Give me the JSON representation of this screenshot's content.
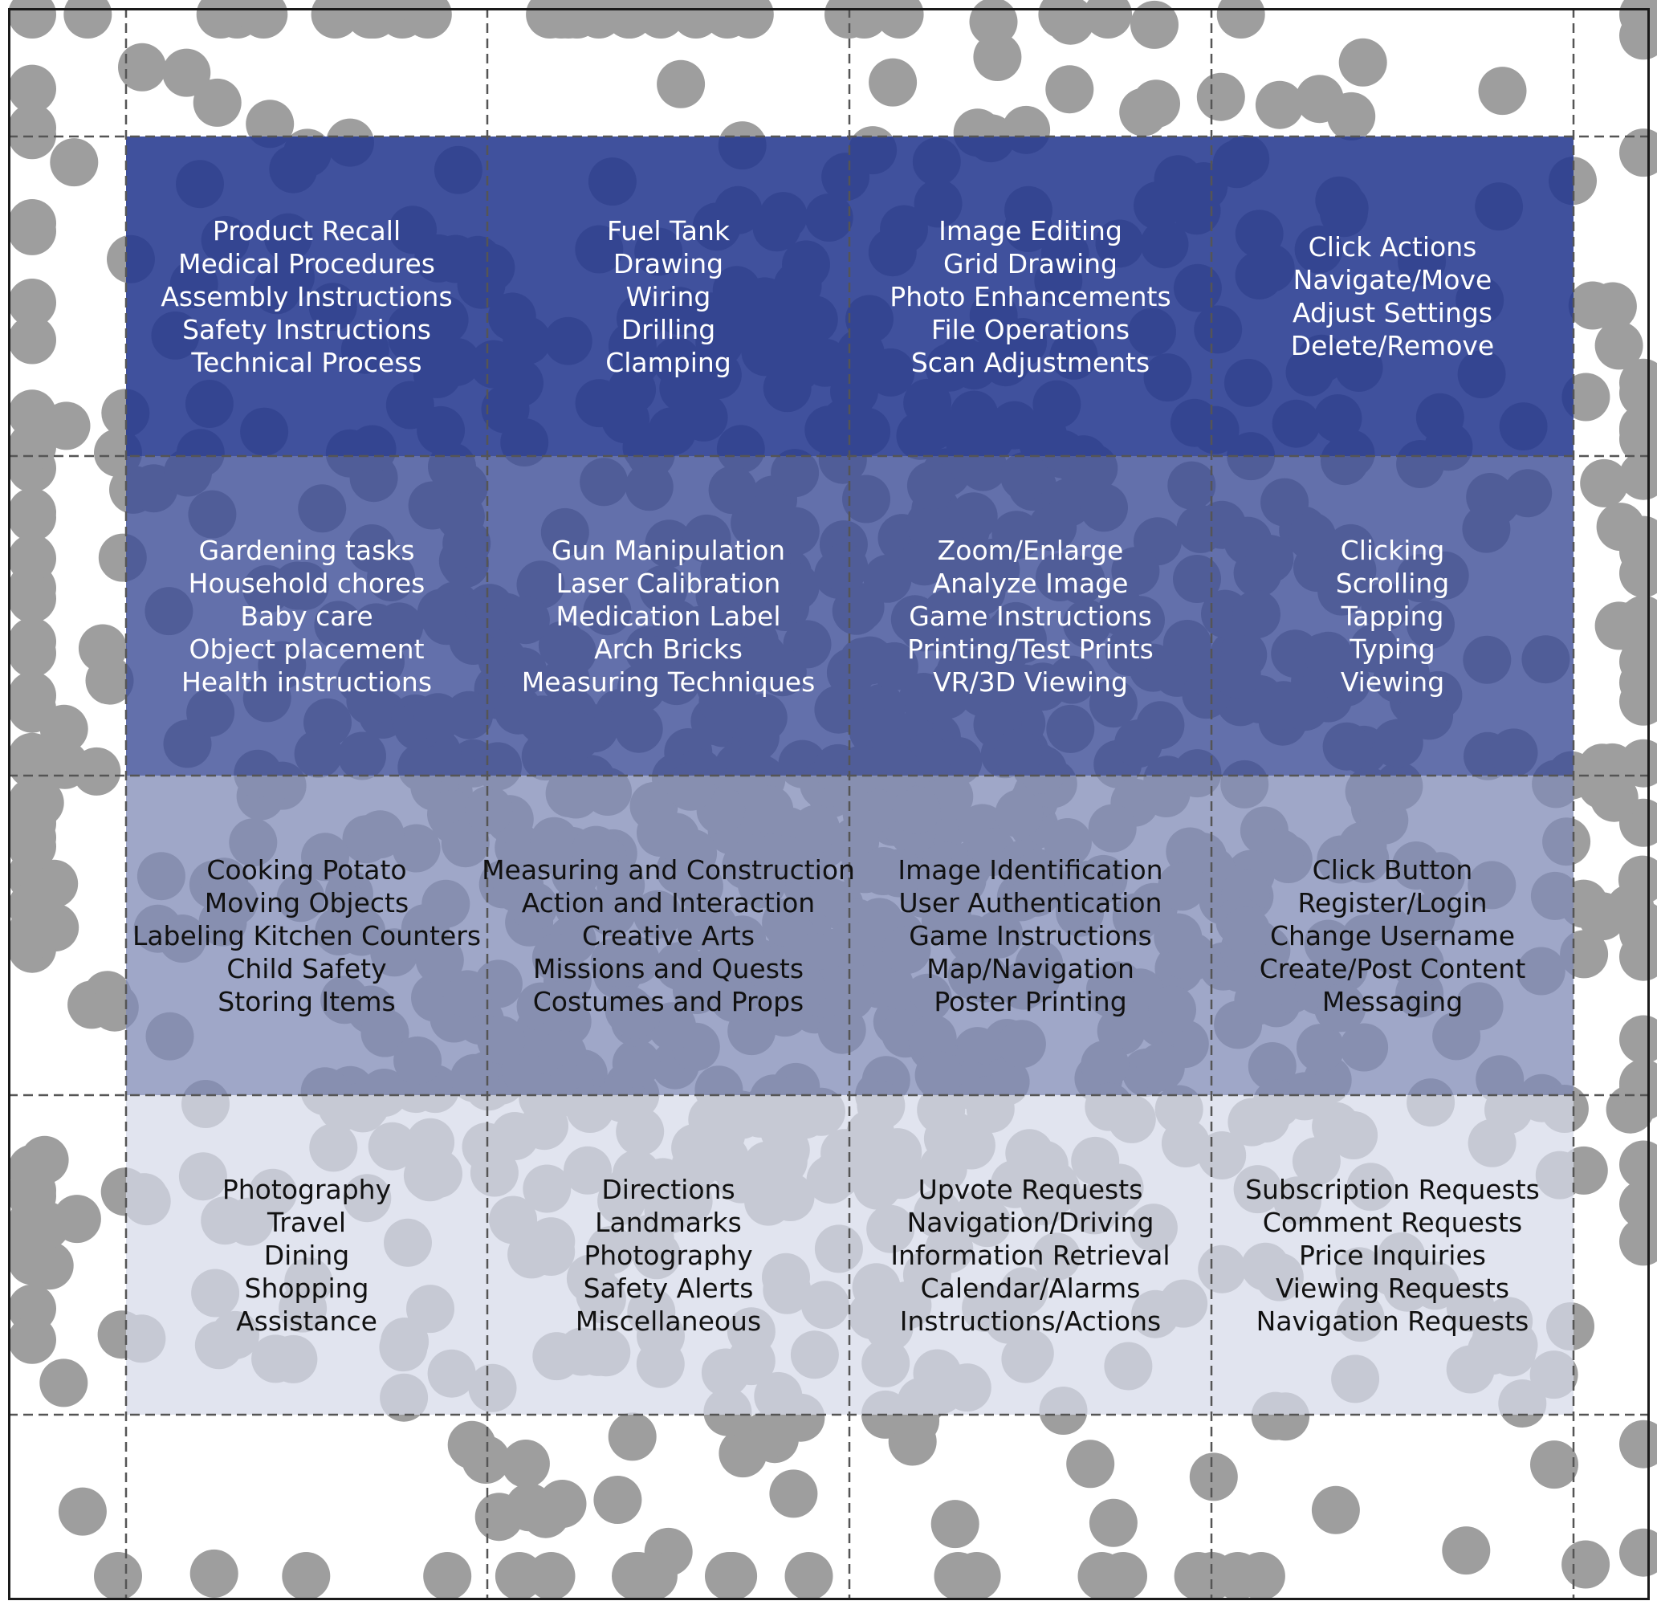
{
  "colors": {
    "dot": "#9e9e9e",
    "row_fills": [
      "#26398f",
      "#3c4c96",
      "#7f8ab6",
      "#d5d9e9"
    ],
    "row_text": [
      "#ffffff",
      "#ffffff",
      "#111111",
      "#111111"
    ],
    "grid_line": "#555555",
    "frame": "#1a1a1a"
  },
  "grid": {
    "cells": [
      [
        {
          "items": [
            "Product Recall",
            "Medical Procedures",
            "Assembly Instructions",
            "Safety Instructions",
            "Technical Process"
          ]
        },
        {
          "items": [
            "Fuel Tank",
            "Drawing",
            "Wiring",
            "Drilling",
            "Clamping"
          ]
        },
        {
          "items": [
            "Image Editing",
            "Grid Drawing",
            "Photo Enhancements",
            "File Operations",
            "Scan Adjustments"
          ]
        },
        {
          "items": [
            "Click Actions",
            "Navigate/Move",
            "Adjust Settings",
            "Delete/Remove"
          ]
        }
      ],
      [
        {
          "items": [
            "Gardening tasks",
            "Household chores",
            "Baby care",
            "Object placement",
            "Health instructions"
          ]
        },
        {
          "items": [
            "Gun Manipulation",
            "Laser Calibration",
            "Medication Label",
            "Arch Bricks",
            "Measuring Techniques"
          ]
        },
        {
          "items": [
            "Zoom/Enlarge",
            "Analyze Image",
            "Game Instructions",
            "Printing/Test Prints",
            "VR/3D Viewing"
          ]
        },
        {
          "items": [
            "Clicking",
            "Scrolling",
            "Tapping",
            "Typing",
            "Viewing"
          ]
        }
      ],
      [
        {
          "items": [
            "Cooking Potato",
            "Moving Objects",
            "Labeling Kitchen Counters",
            "Child Safety",
            "Storing Items"
          ]
        },
        {
          "items": [
            "Measuring and Construction",
            "Action and Interaction",
            "Creative Arts",
            "Missions and Quests",
            "Costumes and Props"
          ]
        },
        {
          "items": [
            "Image Identification",
            "User Authentication",
            "Game Instructions",
            "Map/Navigation",
            "Poster Printing"
          ]
        },
        {
          "items": [
            "Click Button",
            "Register/Login",
            "Change Username",
            "Create/Post Content",
            "Messaging"
          ]
        }
      ],
      [
        {
          "items": [
            "Photography",
            "Travel",
            "Dining",
            "Shopping",
            "Assistance"
          ]
        },
        {
          "items": [
            "Directions",
            "Landmarks",
            "Photography",
            "Safety Alerts",
            "Miscellaneous"
          ]
        },
        {
          "items": [
            "Upvote Requests",
            "Navigation/Driving",
            "Information Retrieval",
            "Calendar/Alarms",
            "Instructions/Actions"
          ]
        },
        {
          "items": [
            "Subscription Requests",
            "Comment Requests",
            "Price Inquiries",
            "Viewing Requests",
            "Navigation Requests"
          ]
        }
      ]
    ]
  }
}
